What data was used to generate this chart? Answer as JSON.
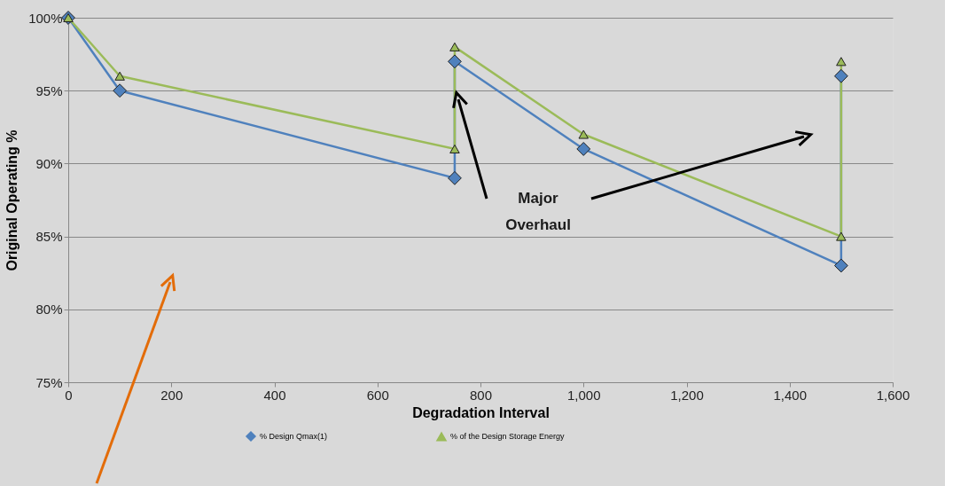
{
  "chart_data": {
    "type": "line",
    "xlabel": "Degradation Interval",
    "ylabel": "Original Operating %",
    "xlim": [
      0,
      1600
    ],
    "ylim": [
      75,
      100
    ],
    "xticks": [
      0,
      200,
      400,
      600,
      800,
      {
        "value": 1000,
        "label": "1,000"
      },
      {
        "value": 1200,
        "label": "1,200"
      },
      {
        "value": 1400,
        "label": "1,400"
      },
      {
        "value": 1600,
        "label": "1,600"
      }
    ],
    "yticks": [
      {
        "value": 75,
        "label": "75%"
      },
      {
        "value": 80,
        "label": "80%"
      },
      {
        "value": 85,
        "label": "85%"
      },
      {
        "value": 90,
        "label": "90%"
      },
      {
        "value": 95,
        "label": "95%"
      },
      {
        "value": 100,
        "label": "100%"
      }
    ],
    "x": [
      0,
      100,
      750,
      750,
      1000,
      1500,
      1500
    ],
    "series": [
      {
        "name": "% Design Qmax(1)",
        "color": "#4f81bd",
        "marker": "diamond",
        "values": [
          100,
          95,
          89,
          97,
          91,
          83,
          96
        ]
      },
      {
        "name": "% of the Design Storage Energy",
        "color": "#9bbb59",
        "marker": "triangle",
        "values": [
          100,
          96,
          91,
          98,
          92,
          85,
          97
        ]
      }
    ],
    "annotations": [
      "Major Overhaul"
    ],
    "grid": "y",
    "legend": "bottom",
    "line_style": "solid"
  }
}
